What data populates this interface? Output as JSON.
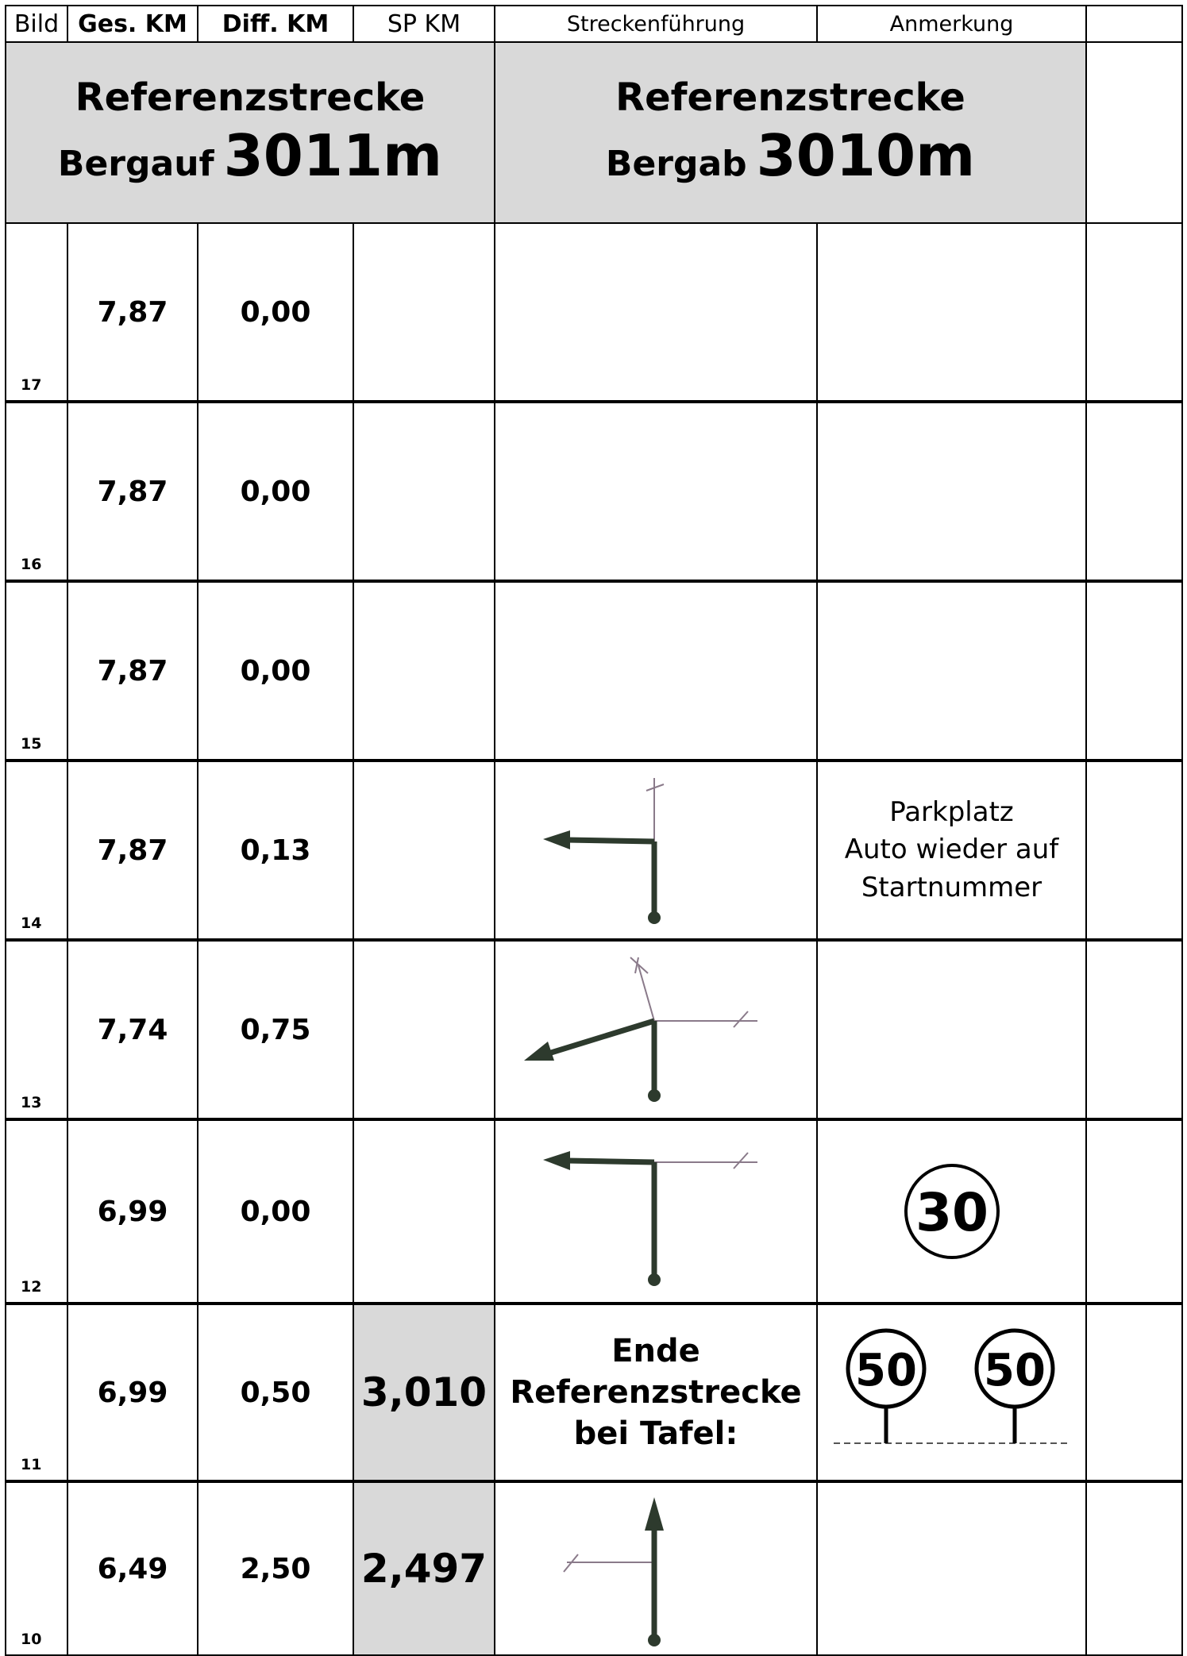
{
  "header": {
    "bild": "Bild",
    "ges_km": "Ges. KM",
    "diff_km": "Diff. KM",
    "sp_km": "SP KM",
    "streckenfuehrung": "Streckenführung",
    "anmerkung": "Anmerkung"
  },
  "reference": {
    "left_line1": "Referenzstrecke",
    "left_word": "Bergauf",
    "left_distance": "3011m",
    "right_line1": "Referenzstrecke",
    "right_word": "Bergab",
    "right_distance": "3010m"
  },
  "rows": [
    {
      "bild": "17",
      "ges": "7,87",
      "diff": "0,00",
      "sp": "",
      "route": "none",
      "note": ""
    },
    {
      "bild": "16",
      "ges": "7,87",
      "diff": "0,00",
      "sp": "",
      "route": "none",
      "note": ""
    },
    {
      "bild": "15",
      "ges": "7,87",
      "diff": "0,00",
      "sp": "",
      "route": "none",
      "note": ""
    },
    {
      "bild": "14",
      "ges": "7,87",
      "diff": "0,13",
      "sp": "",
      "route": "turn-left-icon",
      "note_lines": [
        "Parkplatz",
        "Auto wieder auf",
        "Startnummer"
      ]
    },
    {
      "bild": "13",
      "ges": "7,74",
      "diff": "0,75",
      "sp": "",
      "route": "bear-left-icon",
      "note": ""
    },
    {
      "bild": "12",
      "ges": "6,99",
      "diff": "0,00",
      "sp": "",
      "route": "turn-left-icon",
      "note_sign": "30"
    },
    {
      "bild": "11",
      "ges": "6,99",
      "diff": "0,50",
      "sp": "3,010",
      "route_text": [
        "Ende",
        "Referenzstrecke",
        "bei Tafel:"
      ],
      "note_signs": [
        "50",
        "50"
      ]
    },
    {
      "bild": "10",
      "ges": "6,49",
      "diff": "2,50",
      "sp": "2,497",
      "route": "straight-icon",
      "note": ""
    }
  ]
}
